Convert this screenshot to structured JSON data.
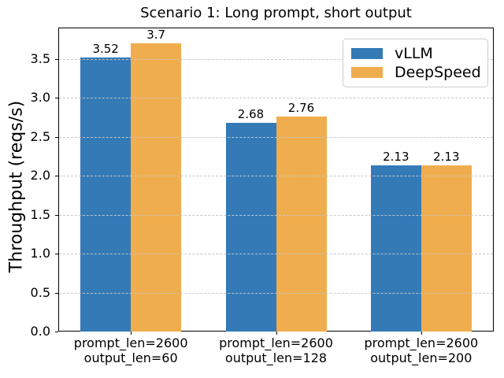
{
  "chart_data": {
    "type": "bar",
    "title": "Scenario 1: Long prompt, short output",
    "ylabel": "Throughput (reqs/s)",
    "xlabel": "",
    "categories": [
      [
        "prompt_len=2600",
        "output_len=60"
      ],
      [
        "prompt_len=2600",
        "output_len=128"
      ],
      [
        "prompt_len=2600",
        "output_len=200"
      ]
    ],
    "series": [
      {
        "name": "vLLM",
        "color": "#337ab7",
        "values": [
          3.52,
          2.68,
          2.13
        ]
      },
      {
        "name": "DeepSpeed",
        "color": "#f0ad4e",
        "values": [
          3.7,
          2.76,
          2.13
        ]
      }
    ],
    "bar_value_labels": [
      [
        "3.52",
        "2.68",
        "2.13"
      ],
      [
        "3.7",
        "2.76",
        "2.13"
      ]
    ],
    "yticks": [
      "0.0",
      "0.5",
      "1.0",
      "1.5",
      "2.0",
      "2.5",
      "3.0",
      "3.5"
    ],
    "ylim": [
      0,
      3.9
    ],
    "grid": {
      "axis": "y",
      "style": "dashed",
      "color": "#c5c5c5"
    },
    "legend_position": "upper right"
  }
}
